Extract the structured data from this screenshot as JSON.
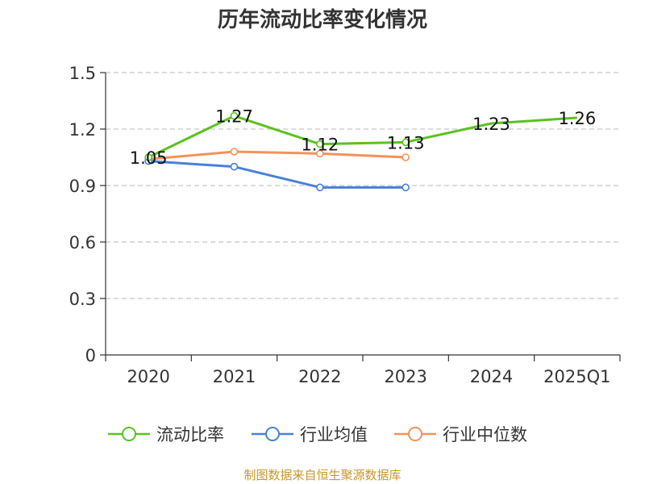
{
  "source_note": "制图数据来自恒生聚源数据库",
  "chart_data": {
    "type": "line",
    "title": "历年流动比率变化情况",
    "categories": [
      "2020",
      "2021",
      "2022",
      "2023",
      "2024",
      "2025Q1"
    ],
    "y_ticks": [
      "0",
      "0.3",
      "0.6",
      "0.9",
      "1.2",
      "1.5"
    ],
    "ylim": [
      0,
      1.5
    ],
    "grid": true,
    "legend_position": "bottom",
    "series": [
      {
        "name": "流动比率",
        "color": "#5bc21f",
        "values": [
          1.05,
          1.27,
          1.12,
          1.13,
          1.23,
          1.26
        ],
        "labels": [
          "1.05",
          "1.27",
          "1.12",
          "1.13",
          "1.23",
          "1.26"
        ],
        "show_points": [
          true,
          true,
          true,
          true,
          false,
          false
        ]
      },
      {
        "name": "行业均值",
        "color": "#4a7fdb",
        "values": [
          1.03,
          1.0,
          0.89,
          0.89,
          null,
          null
        ]
      },
      {
        "name": "行业中位数",
        "color": "#f5915a",
        "values": [
          1.04,
          1.08,
          1.07,
          1.05,
          null,
          null
        ]
      }
    ]
  }
}
